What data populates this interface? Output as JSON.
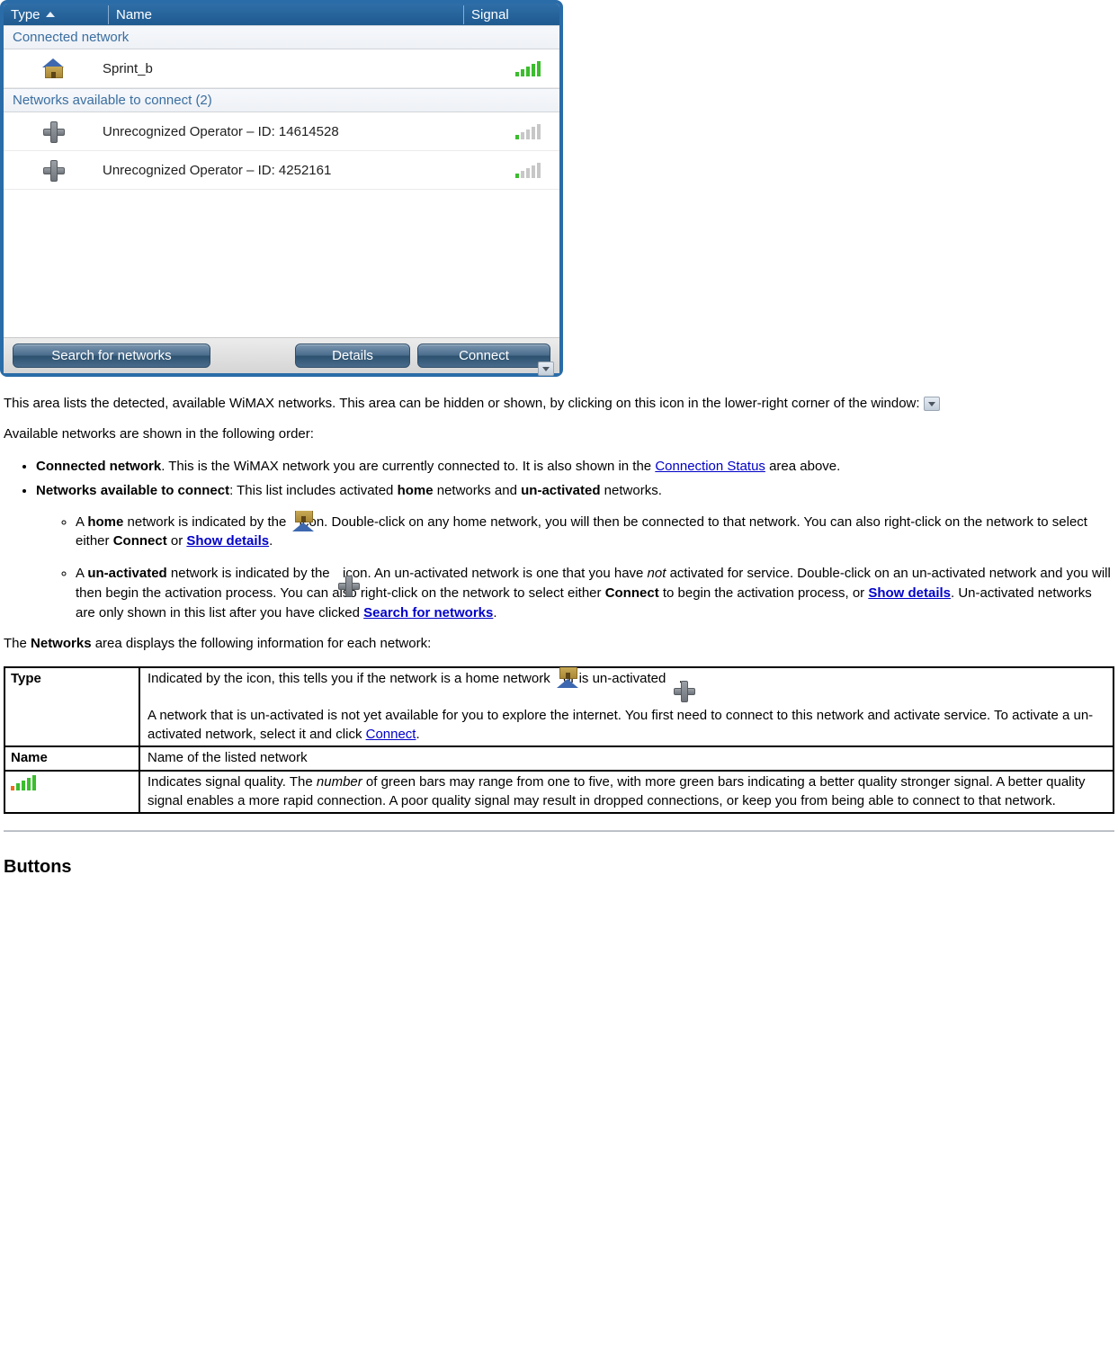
{
  "panel": {
    "columns": {
      "type": "Type",
      "name": "Name",
      "signal": "Signal"
    },
    "section_connected": "Connected network",
    "section_available": "Networks available to connect (2)",
    "rows": {
      "connected_name": "Sprint_b",
      "avail1_name": "Unrecognized Operator – ID: 14614528",
      "avail2_name": "Unrecognized Operator – ID: 4252161"
    },
    "buttons": {
      "search": "Search for networks",
      "details": "Details",
      "connect": "Connect"
    }
  },
  "text": {
    "p1a": "This area lists the detected, available WiMAX networks. This area can be hidden or shown, by clicking on this icon in the lower-right corner of the window: ",
    "p2": "Available networks are shown in the following order:",
    "li1a": "Connected network",
    "li1b": ". This is the WiMAX network you are currently connected to. It is also shown in the ",
    "li1link": "Connection Status",
    "li1c": " area above.",
    "li2a": "Networks available to connect",
    "li2b": ": This list includes activated ",
    "li2c": "home",
    "li2d": " networks and ",
    "li2e": "un-activated",
    "li2f": " networks.",
    "sub1a": "A ",
    "sub1b": "home",
    "sub1c": " network is indicated by the ",
    "sub1d": " icon. Double-click on any home network, you will then be connected to that network. You can also right-click on the network to select either ",
    "sub1e": "Connect",
    "sub1f": " or ",
    "sub1link": "Show details",
    "sub1g": ".",
    "sub2a": "A ",
    "sub2b": "un-activated",
    "sub2c": " network is indicated by the ",
    "sub2d": " icon. An un-activated network is one that you have ",
    "sub2not": "not",
    "sub2e": " activated for service. Double-click on an un-activated network and you will then begin the activation process. You can also right-click on the network to select either ",
    "sub2f": "Connect",
    "sub2g": " to begin the activation process, or ",
    "sub2link1": "Show details",
    "sub2h": ". Un-activated networks are only shown in this list after you have clicked ",
    "sub2link2": "Search for networks",
    "sub2i": ".",
    "p3a": "The ",
    "p3b": "Networks",
    "p3c": " area displays the following information for each network:"
  },
  "table": {
    "row1": {
      "label": "Type",
      "d1": "Indicated by the icon, this tells you if the network is a home network ",
      "d2": " or is un-activated ",
      "d3": ".",
      "d4": "A network that is un-activated is not yet available for you to explore the internet. You first need to connect to this network and activate service. To activate a un-activated network, select it and click ",
      "d4link": "Connect",
      "d5": "."
    },
    "row2": {
      "label": "Name",
      "desc": "Name of the listed network"
    },
    "row3": {
      "d1": "Indicates signal quality. The ",
      "d1i": "number",
      "d2": " of green bars may range from one to five, with more green bars indicating a better quality stronger signal. A better quality signal enables a more rapid connection. A poor quality signal may result in dropped connections, or keep you from being able to connect to that network."
    }
  },
  "headings": {
    "buttons": "Buttons"
  }
}
